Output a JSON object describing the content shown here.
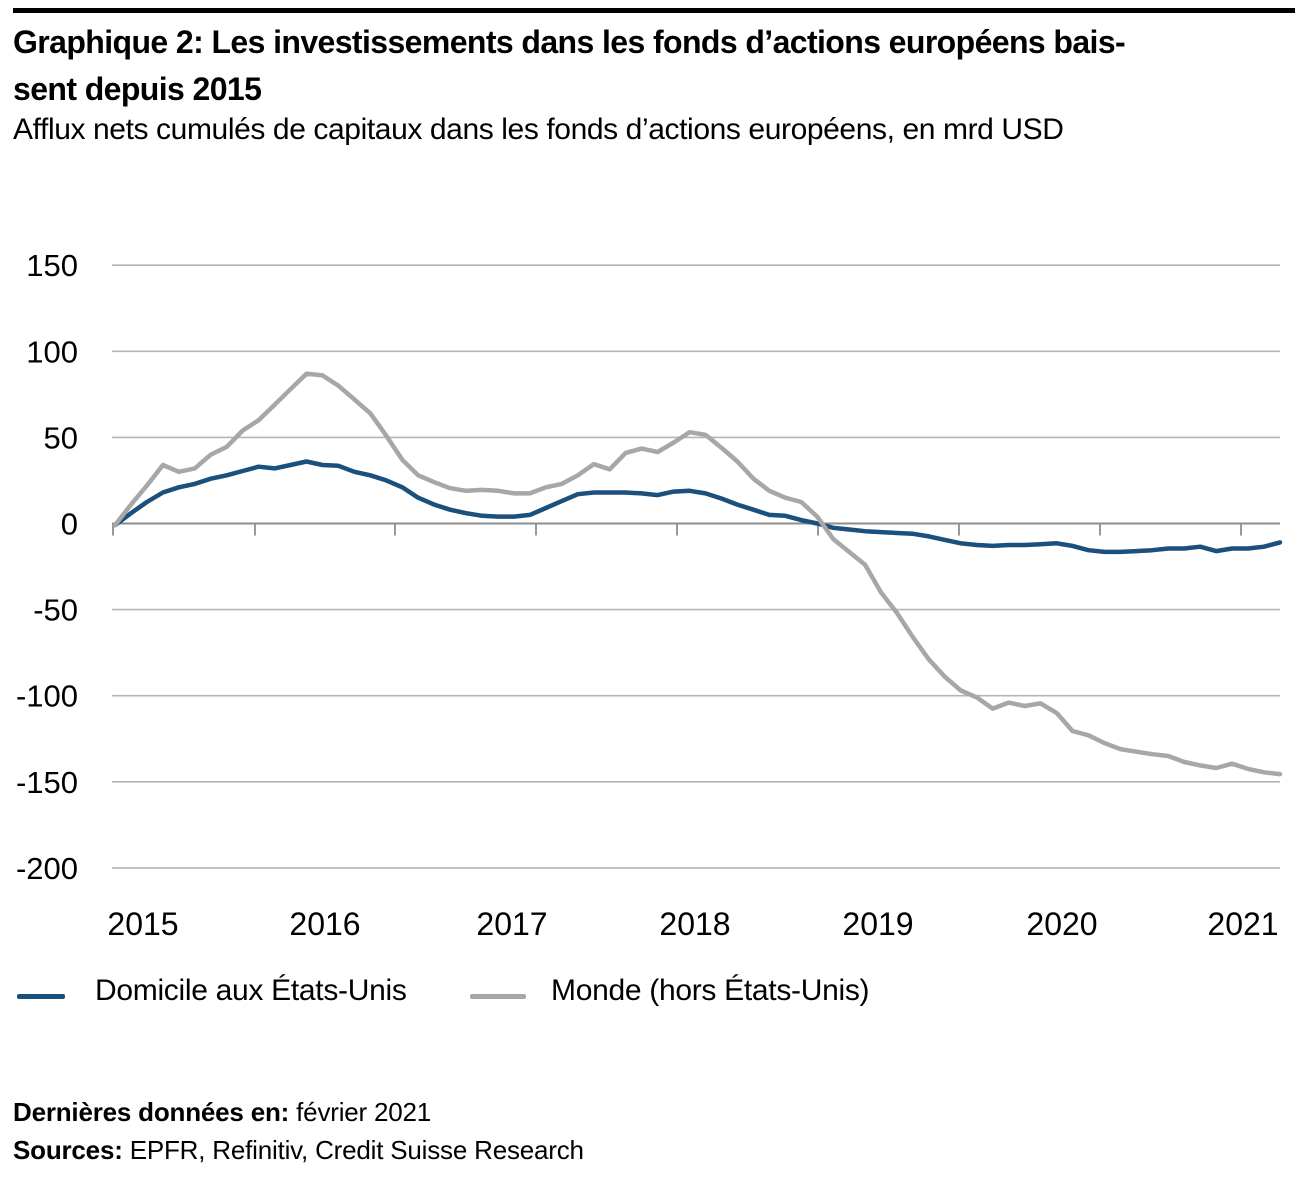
{
  "header": {
    "title_line1": "Graphique 2: Les investissements dans les fonds d’actions européens bais-",
    "title_line2": "sent depuis 2015",
    "subtitle": "Afflux nets cumulés de capitaux dans les fonds d’actions européens, en mrd USD"
  },
  "chart_data": {
    "type": "line",
    "title": "Graphique 2: Les investissements dans les fonds d’actions européens baissent depuis 2015",
    "subtitle": "Afflux nets cumulés de capitaux dans les fonds d’actions européens, en mrd USD",
    "ylabel": "mrd USD (afflux nets cumulés)",
    "x_frequency": "monthly",
    "x_start": "2015-01",
    "x_end": "2021-02",
    "x_tick_labels": [
      "2015",
      "2016",
      "2017",
      "2018",
      "2019",
      "2020",
      "2021"
    ],
    "y_ticks": [
      150,
      100,
      50,
      0,
      -50,
      -100,
      -150,
      -200
    ],
    "ylim": [
      -200,
      150
    ],
    "grid": true,
    "legend_position": "bottom",
    "gridline_color": "#B4B4B4",
    "axis_color": "#8E8E8E",
    "series": [
      {
        "name": "Domicile aux États-Unis",
        "color": "#1B4F7C",
        "values": [
          -1,
          6,
          12.5,
          18,
          21,
          23,
          26,
          28,
          30.5,
          33,
          32,
          34,
          36,
          34,
          33.5,
          30,
          28,
          25,
          21,
          15,
          11,
          8,
          6,
          4.5,
          4,
          4,
          5,
          9,
          13,
          17,
          18,
          18,
          18,
          17.5,
          16.5,
          18.5,
          19,
          17.5,
          14.5,
          11,
          8,
          5,
          4.5,
          2,
          0,
          -2.5,
          -3.5,
          -4.5,
          -5,
          -5.5,
          -6,
          -7.5,
          -9.5,
          -11.5,
          -12.5,
          -13,
          -12.5,
          -12.5,
          -12,
          -11.5,
          -13,
          -15.5,
          -16.5,
          -16.5,
          -16,
          -15.5,
          -14.5,
          -14.5,
          -13.5,
          -16,
          -14.5,
          -14.5,
          -13.5,
          -11
        ]
      },
      {
        "name": "Monde (hors États-Unis)",
        "color": "#A7A7A7",
        "values": [
          -1,
          11,
          22,
          34,
          30,
          32,
          40,
          44.5,
          54,
          60,
          69,
          78,
          87,
          86,
          80,
          72,
          64,
          51,
          37,
          28,
          24,
          20.5,
          19,
          19.5,
          19,
          17.5,
          17.5,
          21,
          23,
          28,
          34.5,
          31.5,
          41,
          43.5,
          41.5,
          47,
          53,
          51.5,
          44,
          36,
          26,
          19,
          15,
          12.5,
          4,
          -9,
          -16.5,
          -24,
          -40,
          -52,
          -66,
          -79,
          -89,
          -97,
          -101,
          -107.5,
          -104,
          -106,
          -104.5,
          -110,
          -120.5,
          -123,
          -127.5,
          -131,
          -132.5,
          -134,
          -135,
          -138.5,
          -140.5,
          -142,
          -139.5,
          -142.5,
          -144.5,
          -145.5
        ]
      }
    ]
  },
  "legend": {
    "items": [
      {
        "label": "Domicile aux États-Unis"
      },
      {
        "label": "Monde (hors États-Unis)"
      }
    ]
  },
  "footer": {
    "last_data_label": "Dernières données en:",
    "last_data_value": "février 2021",
    "sources_label": "Sources:",
    "sources_value": "EPFR, Refinitiv, Credit Suisse Research"
  }
}
